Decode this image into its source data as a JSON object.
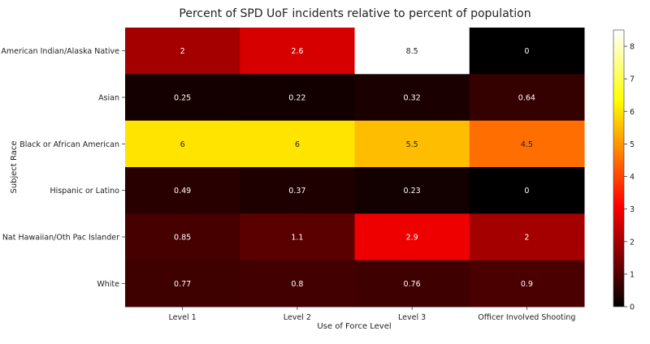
{
  "chart_data": {
    "type": "heatmap",
    "title": "Percent of SPD UoF incidents relative to percent of population",
    "xlabel": "Use of Force Level",
    "ylabel": "Subject Race",
    "columns": [
      "Level 1",
      "Level 2",
      "Level 3",
      "Officer Involved Shooting"
    ],
    "rows": [
      "American Indian/Alaska Native",
      "Asian",
      "Black or African American",
      "Hispanic or Latino",
      "Nat Hawaiian/Oth Pac Islander",
      "White"
    ],
    "values": [
      [
        2,
        2.6,
        8.5,
        0
      ],
      [
        0.25,
        0.22,
        0.32,
        0.64
      ],
      [
        6,
        6,
        5.5,
        4.5
      ],
      [
        0.49,
        0.37,
        0.23,
        0
      ],
      [
        0.85,
        1.1,
        2.9,
        2
      ],
      [
        0.77,
        0.8,
        0.76,
        0.9
      ]
    ],
    "labels": [
      [
        "2",
        "2.6",
        "8.5",
        "0"
      ],
      [
        "0.25",
        "0.22",
        "0.32",
        "0.64"
      ],
      [
        "6",
        "6",
        "5.5",
        "4.5"
      ],
      [
        "0.49",
        "0.37",
        "0.23",
        "0"
      ],
      [
        "0.85",
        "1.1",
        "2.9",
        "2"
      ],
      [
        "0.77",
        "0.8",
        "0.76",
        "0.9"
      ]
    ],
    "colormap": "hot",
    "vmin": 0,
    "vmax": 8.5,
    "colorbar_ticks": [
      0,
      1,
      2,
      3,
      4,
      5,
      6,
      7,
      8
    ]
  }
}
